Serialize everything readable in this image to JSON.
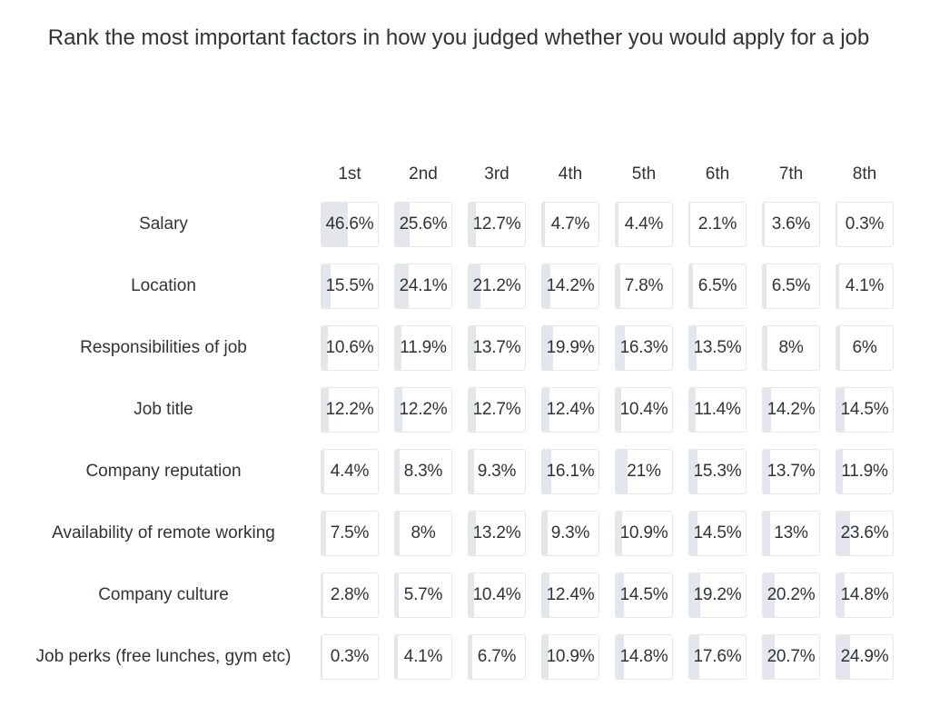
{
  "chart_data": {
    "type": "table",
    "title": "Rank the most important factors in how you judged whether you would apply for a job",
    "columns": [
      "1st",
      "2nd",
      "3rd",
      "4th",
      "5th",
      "6th",
      "7th",
      "8th"
    ],
    "rows": [
      {
        "label": "Salary",
        "values": [
          46.6,
          25.6,
          12.7,
          4.7,
          4.4,
          2.1,
          3.6,
          0.3
        ],
        "display": [
          "46.6%",
          "25.6%",
          "12.7%",
          "4.7%",
          "4.4%",
          "2.1%",
          "3.6%",
          "0.3%"
        ]
      },
      {
        "label": "Location",
        "values": [
          15.5,
          24.1,
          21.2,
          14.2,
          7.8,
          6.5,
          6.5,
          4.1
        ],
        "display": [
          "15.5%",
          "24.1%",
          "21.2%",
          "14.2%",
          "7.8%",
          "6.5%",
          "6.5%",
          "4.1%"
        ]
      },
      {
        "label": "Responsibilities of job",
        "values": [
          10.6,
          11.9,
          13.7,
          19.9,
          16.3,
          13.5,
          8,
          6
        ],
        "display": [
          "10.6%",
          "11.9%",
          "13.7%",
          "19.9%",
          "16.3%",
          "13.5%",
          "8%",
          "6%"
        ]
      },
      {
        "label": "Job title",
        "values": [
          12.2,
          12.2,
          12.7,
          12.4,
          10.4,
          11.4,
          14.2,
          14.5
        ],
        "display": [
          "12.2%",
          "12.2%",
          "12.7%",
          "12.4%",
          "10.4%",
          "11.4%",
          "14.2%",
          "14.5%"
        ]
      },
      {
        "label": "Company reputation",
        "values": [
          4.4,
          8.3,
          9.3,
          16.1,
          21,
          15.3,
          13.7,
          11.9
        ],
        "display": [
          "4.4%",
          "8.3%",
          "9.3%",
          "16.1%",
          "21%",
          "15.3%",
          "13.7%",
          "11.9%"
        ]
      },
      {
        "label": "Availability of remote working",
        "values": [
          7.5,
          8,
          13.2,
          9.3,
          10.9,
          14.5,
          13,
          23.6
        ],
        "display": [
          "7.5%",
          "8%",
          "13.2%",
          "9.3%",
          "10.9%",
          "14.5%",
          "13%",
          "23.6%"
        ]
      },
      {
        "label": "Company culture",
        "values": [
          2.8,
          5.7,
          10.4,
          12.4,
          14.5,
          19.2,
          20.2,
          14.8
        ],
        "display": [
          "2.8%",
          "5.7%",
          "10.4%",
          "12.4%",
          "14.5%",
          "19.2%",
          "20.2%",
          "14.8%"
        ]
      },
      {
        "label": "Job perks (free lunches, gym etc)",
        "values": [
          0.3,
          4.1,
          6.7,
          10.9,
          14.8,
          17.6,
          20.7,
          24.9
        ],
        "display": [
          "0.3%",
          "4.1%",
          "6.7%",
          "10.9%",
          "14.8%",
          "17.6%",
          "20.7%",
          "24.9%"
        ]
      }
    ],
    "colors": {
      "bar_fill": "#e3e7ec",
      "cell_border": "#e4e7eb",
      "text": "#2f3437"
    }
  }
}
